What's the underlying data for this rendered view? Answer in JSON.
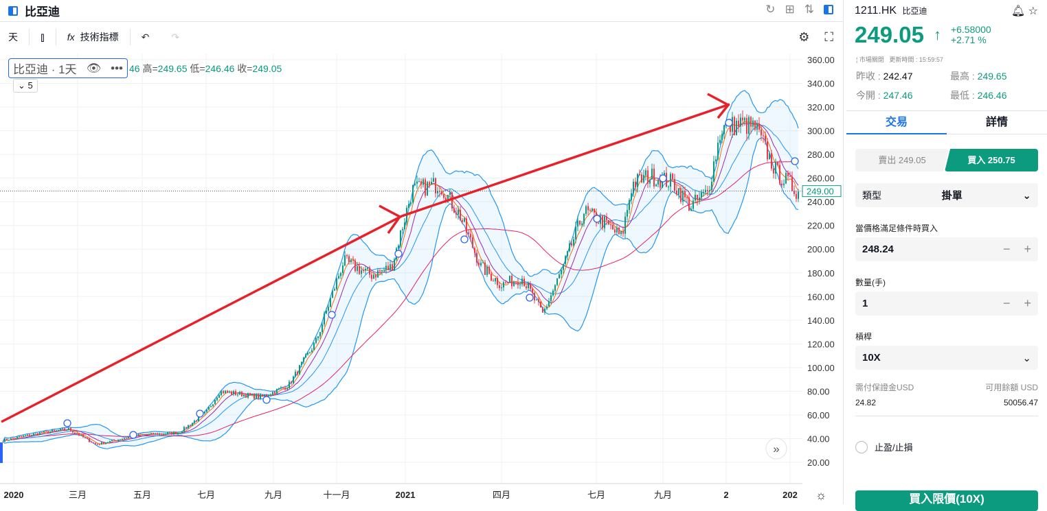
{
  "header": {
    "title": "比亞迪"
  },
  "toolbar": {
    "interval": "天",
    "indicators": "技術指標"
  },
  "legend": {
    "name": "比亞迪 · 1天",
    "ohlc_open_tail": "46",
    "high_label": "高=",
    "high": "249.65",
    "low_label": "低=",
    "low": "246.46",
    "close_label": "收=",
    "close": "249.05",
    "collapse": "5"
  },
  "price_axis": {
    "ticks": [
      "360.00",
      "340.00",
      "320.00",
      "300.00",
      "280.00",
      "260.00",
      "240.00",
      "220.00",
      "200.00",
      "180.00",
      "160.00",
      "140.00",
      "120.00",
      "100.00",
      "80.00",
      "60.00",
      "40.00",
      "20.00"
    ],
    "current": "249.00"
  },
  "time_axis": [
    "2020",
    "三月",
    "五月",
    "七月",
    "九月",
    "十一月",
    "2021",
    "四月",
    "七月",
    "九月",
    "2",
    "202"
  ],
  "chart_data": {
    "type": "candlestick",
    "current_price": 249.05,
    "ylim": [
      10,
      365
    ],
    "close_path": [
      [
        0,
        38
      ],
      [
        60,
        45
      ],
      [
        100,
        48
      ],
      [
        140,
        35
      ],
      [
        200,
        43
      ],
      [
        260,
        45
      ],
      [
        300,
        62
      ],
      [
        320,
        80
      ],
      [
        380,
        75
      ],
      [
        420,
        85
      ],
      [
        460,
        122
      ],
      [
        500,
        190
      ],
      [
        540,
        178
      ],
      [
        570,
        185
      ],
      [
        600,
        250
      ],
      [
        640,
        255
      ],
      [
        670,
        228
      ],
      [
        700,
        185
      ],
      [
        730,
        170
      ],
      [
        760,
        176
      ],
      [
        790,
        145
      ],
      [
        820,
        185
      ],
      [
        850,
        232
      ],
      [
        880,
        222
      ],
      [
        905,
        210
      ],
      [
        920,
        255
      ],
      [
        945,
        262
      ],
      [
        980,
        256
      ],
      [
        1005,
        236
      ],
      [
        1030,
        248
      ],
      [
        1050,
        302
      ],
      [
        1080,
        306
      ],
      [
        1100,
        302
      ],
      [
        1130,
        265
      ],
      [
        1160,
        249
      ]
    ]
  },
  "quote": {
    "symbol": "1211.HK",
    "name": "比亞迪",
    "price": "249.05",
    "change": "+6.58000",
    "change_pct": "+2.71 %",
    "status": "市場關閉",
    "update": "更新時間 : 15:59:57",
    "prev_close_label": "昨收 : ",
    "prev_close": "242.47",
    "open_label": "今開 : ",
    "open": "247.46",
    "high_label": "最高 : ",
    "high": "249.65",
    "low_label": "最低 : ",
    "low": "246.46"
  },
  "tabs": [
    "交易",
    "詳情"
  ],
  "trade": {
    "sell": "賣出 249.05",
    "buy": "買入 250.75",
    "type_label": "類型",
    "type_value": "掛單",
    "cond_label": "當價格滿足條件時買入",
    "cond_price": "248.24",
    "qty_label": "數量(手)",
    "qty": "1",
    "lev_label": "槓桿",
    "lev": "10X",
    "margin_label": "需付保證金USD",
    "margin": "24.82",
    "avail_label": "可用餘額 USD",
    "avail": "50056.47",
    "tpsl": "止盈/止損",
    "submit": "買入限價(10X)"
  },
  "colors": {
    "up": "#089981",
    "down": "#f23645",
    "accent": "#0d9b7f",
    "blue": "#2962ff"
  }
}
